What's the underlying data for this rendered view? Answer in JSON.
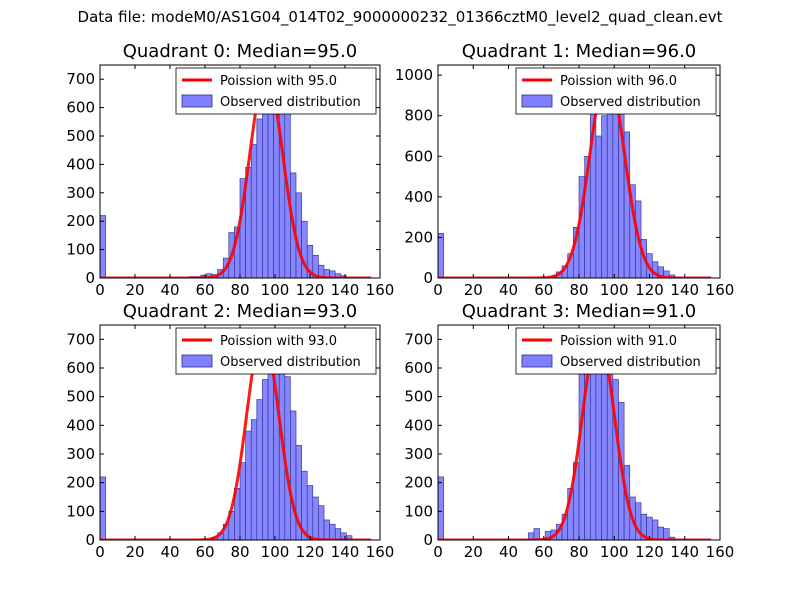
{
  "figure_title": "Data file: modeM0/AS1G04_014T02_9000000232_01366cztM0_level2_quad_clean.evt",
  "colors": {
    "hist_fill": "#8080ff",
    "hist_edge": "#2b2b8a",
    "poisson": "#ff0000"
  },
  "chart_data": [
    {
      "type": "bar+line",
      "title": "Quadrant 0: Median=95.0",
      "xlim": [
        0,
        160
      ],
      "ylim": [
        0,
        750
      ],
      "xticks": [
        0,
        20,
        40,
        60,
        80,
        100,
        120,
        140,
        160
      ],
      "yticks": [
        0,
        100,
        200,
        300,
        400,
        500,
        600,
        700
      ],
      "legend": {
        "line_label": "Poission with 95.0",
        "bar_label": "Observed distribution",
        "placement": "top-right"
      },
      "poisson_mean": 95.0,
      "poisson_peak": 720,
      "poisson_sigma": 9.4,
      "bin_width": 3.2,
      "hist": {
        "x": [
          0,
          51.2,
          54.4,
          57.6,
          60.8,
          64,
          67.2,
          70.4,
          73.6,
          76.8,
          80,
          83.2,
          86.4,
          89.6,
          92.8,
          96,
          99.2,
          102.4,
          105.6,
          108.8,
          112,
          115.2,
          118.4,
          121.6,
          124.8,
          128,
          131.2,
          134.4,
          137.6
        ],
        "values": [
          220,
          5,
          5,
          10,
          15,
          12,
          30,
          70,
          160,
          180,
          350,
          390,
          470,
          560,
          620,
          680,
          700,
          650,
          590,
          370,
          300,
          200,
          115,
          80,
          45,
          30,
          25,
          15,
          8
        ]
      }
    },
    {
      "type": "bar+line",
      "title": "Quadrant 1: Median=96.0",
      "xlim": [
        0,
        160
      ],
      "ylim": [
        0,
        1050
      ],
      "xticks": [
        0,
        20,
        40,
        60,
        80,
        100,
        120,
        140,
        160
      ],
      "yticks": [
        0,
        200,
        400,
        600,
        800,
        1000
      ],
      "legend": {
        "line_label": "Poission with 96.0",
        "bar_label": "Observed distribution",
        "placement": "top-right"
      },
      "poisson_mean": 96.0,
      "poisson_peak": 1010,
      "poisson_sigma": 9.8,
      "bin_width": 3.2,
      "hist": {
        "x": [
          0,
          64,
          67.2,
          70.4,
          73.6,
          76.8,
          80,
          83.2,
          86.4,
          89.6,
          92.8,
          96,
          99.2,
          102.4,
          105.6,
          108.8,
          112,
          115.2,
          118.4,
          121.6,
          124.8,
          128,
          131.2
        ],
        "values": [
          220,
          10,
          30,
          60,
          120,
          250,
          500,
          600,
          850,
          700,
          800,
          950,
          1010,
          920,
          720,
          460,
          380,
          190,
          120,
          80,
          55,
          35,
          15
        ]
      }
    },
    {
      "type": "bar+line",
      "title": "Quadrant 2: Median=93.0",
      "xlim": [
        0,
        160
      ],
      "ylim": [
        0,
        750
      ],
      "xticks": [
        0,
        20,
        40,
        60,
        80,
        100,
        120,
        140,
        160
      ],
      "yticks": [
        0,
        100,
        200,
        300,
        400,
        500,
        600,
        700
      ],
      "legend": {
        "line_label": "Poission with 93.0",
        "bar_label": "Observed distribution",
        "placement": "top-right"
      },
      "poisson_mean": 93.0,
      "poisson_peak": 720,
      "poisson_sigma": 9.2,
      "bin_width": 3.2,
      "hist": {
        "x": [
          0,
          64,
          67.2,
          70.4,
          73.6,
          76.8,
          80,
          83.2,
          86.4,
          89.6,
          92.8,
          96,
          99.2,
          102.4,
          105.6,
          108.8,
          112,
          115.2,
          118.4,
          121.6,
          124.8,
          128,
          131.2,
          134.4,
          137.6,
          140.8
        ],
        "values": [
          220,
          10,
          25,
          55,
          100,
          180,
          270,
          380,
          420,
          490,
          560,
          650,
          730,
          710,
          570,
          450,
          330,
          240,
          190,
          150,
          120,
          70,
          55,
          40,
          25,
          15
        ]
      }
    },
    {
      "type": "bar+line",
      "title": "Quadrant 3: Median=91.0",
      "xlim": [
        0,
        160
      ],
      "ylim": [
        0,
        750
      ],
      "xticks": [
        0,
        20,
        40,
        60,
        80,
        100,
        120,
        140,
        160
      ],
      "yticks": [
        0,
        100,
        200,
        300,
        400,
        500,
        600,
        700
      ],
      "legend": {
        "line_label": "Poission with 91.0",
        "bar_label": "Observed distribution",
        "placement": "top-right"
      },
      "poisson_mean": 91.0,
      "poisson_peak": 715,
      "poisson_sigma": 9.1,
      "bin_width": 3.2,
      "hist": {
        "x": [
          0,
          51.2,
          54.4,
          57.6,
          60.8,
          64,
          67.2,
          70.4,
          73.6,
          76.8,
          80,
          83.2,
          86.4,
          89.6,
          92.8,
          96,
          99.2,
          102.4,
          105.6,
          108.8,
          112,
          115.2,
          118.4,
          121.6,
          124.8,
          128,
          131.2
        ],
        "values": [
          220,
          25,
          40,
          5,
          30,
          35,
          55,
          90,
          180,
          270,
          580,
          600,
          650,
          620,
          700,
          640,
          560,
          480,
          260,
          150,
          130,
          90,
          80,
          70,
          45,
          40,
          10
        ]
      }
    }
  ]
}
